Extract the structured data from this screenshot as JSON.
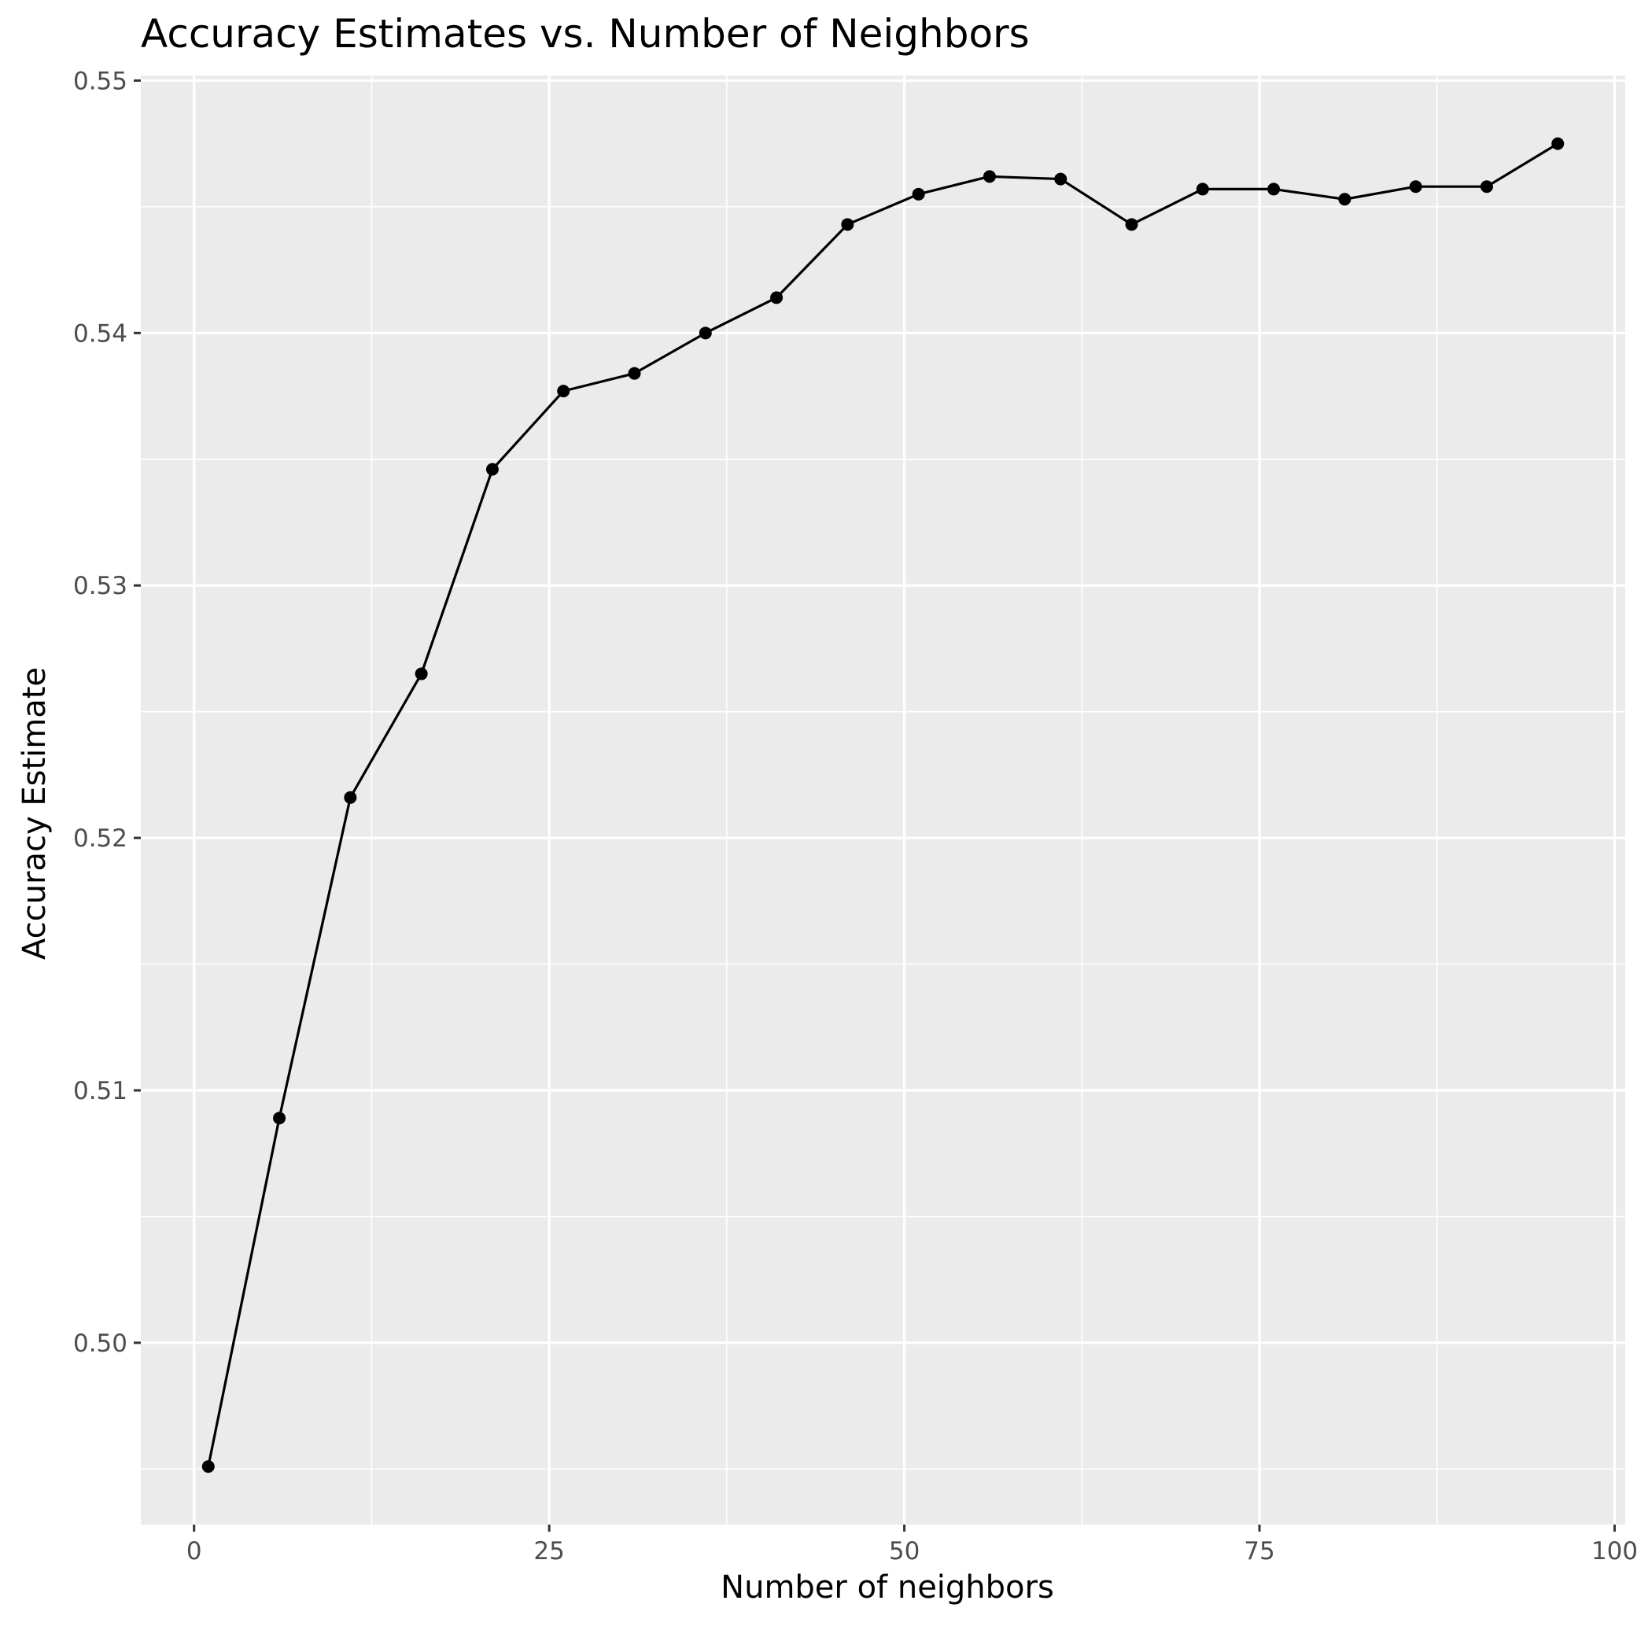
{
  "chart_data": {
    "type": "line",
    "title": "Accuracy Estimates vs. Number of Neighbors",
    "xlabel": "Number of neighbors",
    "ylabel": "Accuracy Estimate",
    "xlim": [
      -3.75,
      100.75
    ],
    "ylim": [
      0.4928,
      0.5502
    ],
    "x_ticks": [
      0,
      25,
      50,
      75,
      100
    ],
    "x_tick_labels": [
      "0",
      "25",
      "50",
      "75",
      "100"
    ],
    "y_ticks": [
      0.5,
      0.51,
      0.52,
      0.53,
      0.54,
      0.55
    ],
    "y_tick_labels": [
      "0.50",
      "0.51",
      "0.52",
      "0.53",
      "0.54",
      "0.55"
    ],
    "grid": true,
    "series": [
      {
        "x": [
          1,
          6,
          11,
          16,
          21,
          26,
          31,
          36,
          41,
          46,
          51,
          56,
          61,
          66,
          71,
          76,
          81,
          86,
          91,
          96
        ],
        "y": [
          0.4951,
          0.5089,
          0.5216,
          0.5265,
          0.5346,
          0.5377,
          0.5384,
          0.54,
          0.5414,
          0.5443,
          0.5455,
          0.5462,
          0.5461,
          0.5443,
          0.5457,
          0.5457,
          0.5453,
          0.5458,
          0.5458,
          0.5475
        ]
      }
    ],
    "colors": {
      "panel_background": "#ebebeb",
      "grid": "#ffffff",
      "line": "#000000",
      "point": "#000000",
      "tick_text": "#4d4d4d",
      "axis_text": "#000000"
    }
  }
}
